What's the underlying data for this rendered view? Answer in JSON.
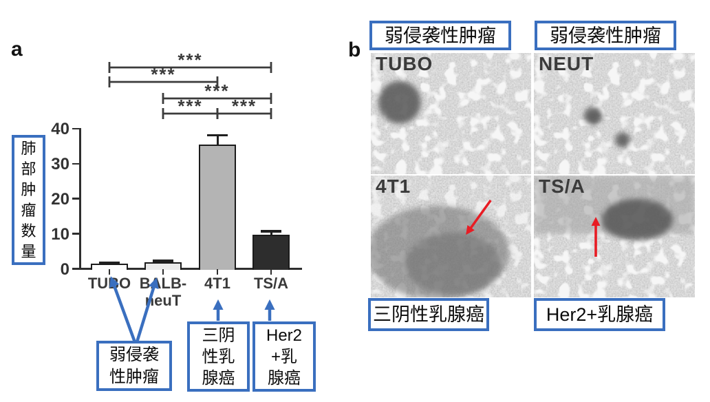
{
  "panel_a": {
    "label": "a",
    "y_axis_label": "肺\n部\n肿\n瘤\n数\n量",
    "annotations": {
      "weak_invasive": "弱侵袭\n性肿瘤",
      "tnbc": "三阴\n性乳\n腺癌",
      "her2": "Her2\n+乳\n腺癌"
    }
  },
  "chart_data": {
    "type": "bar",
    "categories": [
      "TUBO",
      "BALB-\nneuT",
      "4T1",
      "TS/A"
    ],
    "values": [
      1.4,
      1.8,
      35.5,
      9.8
    ],
    "errors": [
      0.5,
      0.6,
      2.8,
      1.1
    ],
    "ylabel": "肺部肿瘤数量",
    "ylim": [
      0,
      40
    ],
    "yticks": [
      0,
      10,
      20,
      30,
      40
    ],
    "grid": false,
    "bar_colors": [
      "#fdfdfd",
      "#eaeaea",
      "#b4b4b4",
      "#2d2d2d"
    ],
    "significance": [
      {
        "from": 0,
        "to": 3,
        "row": 0,
        "label": "***"
      },
      {
        "from": 0,
        "to": 2,
        "row": 1,
        "label": "***"
      },
      {
        "from": 1,
        "to": 3,
        "row": 2,
        "label": "***"
      },
      {
        "from": 1,
        "to": 2,
        "row": 3,
        "label": "***"
      },
      {
        "from": 2,
        "to": 3,
        "row": 3,
        "label": "***"
      }
    ]
  },
  "panel_b": {
    "label": "b",
    "top_labels": [
      "弱侵袭性肿瘤",
      "弱侵袭性肿瘤"
    ],
    "bottom_labels": [
      "三阴性乳腺癌",
      "Her2+乳腺癌"
    ],
    "images": [
      {
        "name": "TUBO"
      },
      {
        "name": "NEUT"
      },
      {
        "name": "4T1"
      },
      {
        "name": "TS/A"
      }
    ]
  },
  "colors": {
    "annotation_blue": "#3a6fbf",
    "arrow_red": "#e81c24",
    "axis_dark": "#2e2e2e"
  }
}
